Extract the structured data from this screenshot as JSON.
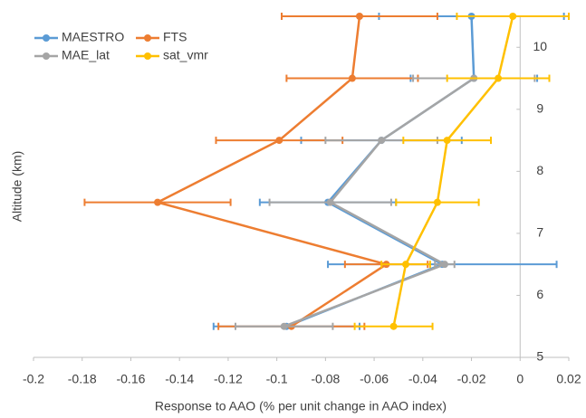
{
  "chart_data": {
    "type": "line",
    "xlabel": "Response to AAO (% per unit change in AAO index)",
    "ylabel": "Altitude (km)",
    "y": [
      10.5,
      9.5,
      8.5,
      7.5,
      6.5,
      5.5
    ],
    "series": [
      {
        "name": "MAESTRO",
        "color": "#5b9bd5",
        "values": [
          -0.02,
          -0.019,
          -0.057,
          -0.079,
          -0.032,
          -0.096
        ],
        "errors": [
          0.038,
          0.026,
          0.033,
          0.028,
          0.047,
          0.03
        ]
      },
      {
        "name": "FTS",
        "color": "#ed7d31",
        "values": [
          -0.066,
          -0.069,
          -0.099,
          -0.149,
          -0.055,
          -0.094
        ],
        "errors": [
          0.032,
          0.027,
          0.026,
          0.03,
          0.017,
          0.03
        ]
      },
      {
        "name": "MAE_lat",
        "color": "#a5a5a5",
        "values": [
          null,
          -0.019,
          -0.057,
          -0.078,
          -0.031,
          -0.097
        ],
        "errors": [
          null,
          0.025,
          0.023,
          0.025,
          0.004,
          0.02
        ]
      },
      {
        "name": "sat_vmr",
        "color": "#ffc000",
        "values": [
          -0.003,
          -0.009,
          -0.03,
          -0.034,
          -0.047,
          -0.052
        ],
        "errors": [
          0.023,
          0.021,
          0.018,
          0.017,
          0.01,
          0.016
        ]
      }
    ],
    "xlim": [
      -0.2,
      0.02
    ],
    "xticks": [
      -0.2,
      -0.18,
      -0.16,
      -0.14,
      -0.12,
      -0.1,
      -0.08,
      -0.06,
      -0.04,
      -0.02,
      0,
      0.02
    ],
    "ylim": [
      5,
      10.5
    ],
    "yticks": [
      5,
      6,
      7,
      8,
      9,
      10
    ],
    "grid": false,
    "legend": "top-left"
  }
}
